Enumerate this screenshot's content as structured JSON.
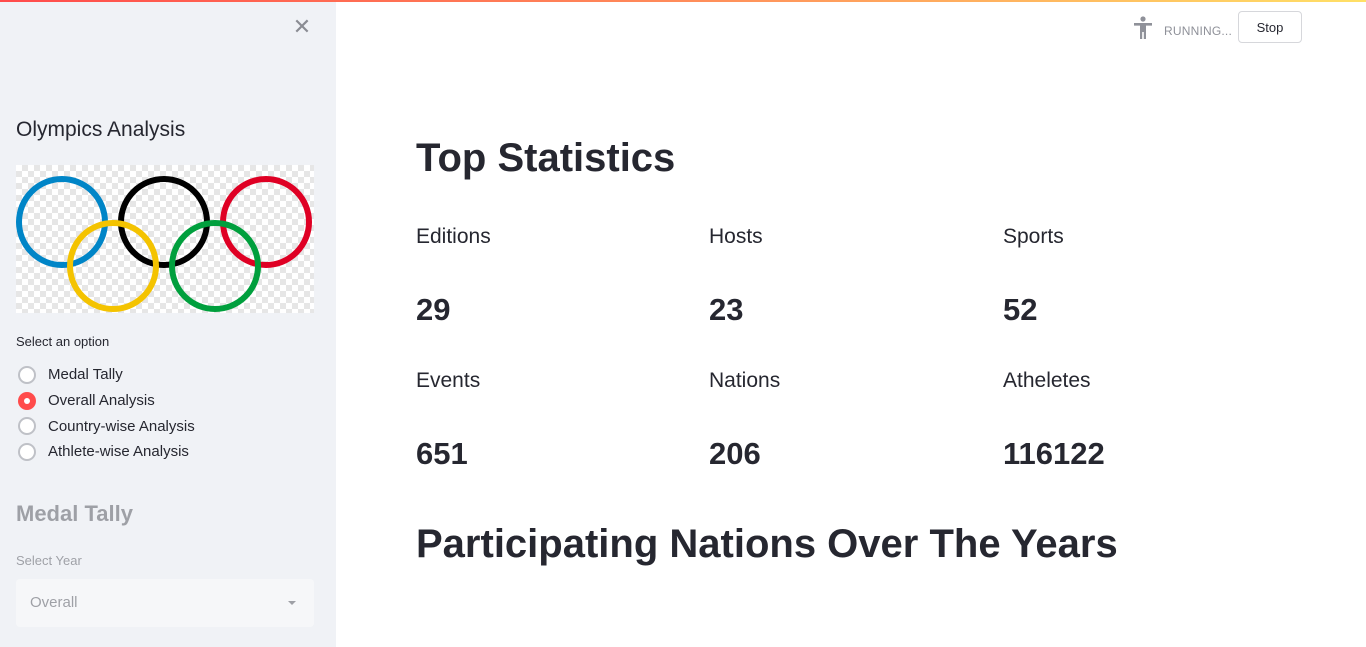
{
  "sidebar": {
    "title": "Olympics Analysis",
    "radio_label": "Select an option",
    "options": [
      "Medal Tally",
      "Overall Analysis",
      "Country-wise Analysis",
      "Athlete-wise Analysis"
    ],
    "selected_option": "Overall Analysis",
    "subheader": "Medal Tally",
    "select_label": "Select Year",
    "select_value": "Overall"
  },
  "status": {
    "running_text": "RUNNING...",
    "stop_label": "Stop"
  },
  "main": {
    "title": "Top Statistics",
    "metrics": [
      {
        "label": "Editions",
        "value": "29"
      },
      {
        "label": "Hosts",
        "value": "23"
      },
      {
        "label": "Sports",
        "value": "52"
      },
      {
        "label": "Events",
        "value": "651"
      },
      {
        "label": "Nations",
        "value": "206"
      },
      {
        "label": "Atheletes",
        "value": "116122"
      }
    ],
    "section_title": "Participating Nations Over The Years"
  },
  "colors": {
    "accent": "#ff4b4b",
    "sidebar_bg": "#f0f2f6",
    "text": "#262730",
    "ring_blue": "#0085c7",
    "ring_black": "#000000",
    "ring_red": "#df0024",
    "ring_yellow": "#f4c300",
    "ring_green": "#009f3d"
  }
}
